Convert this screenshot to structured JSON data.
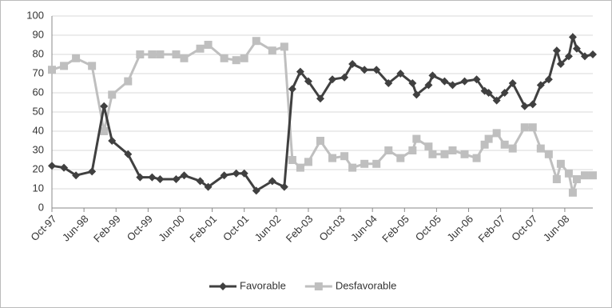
{
  "chart_data": {
    "type": "line",
    "x": [
      "1997-10",
      "1998-01",
      "1998-04",
      "1998-08",
      "1998-11",
      "1999-01",
      "1999-05",
      "1999-08",
      "1999-11",
      "2000-01",
      "2000-05",
      "2000-07",
      "2000-11",
      "2001-01",
      "2001-05",
      "2001-08",
      "2001-10",
      "2002-01",
      "2002-05",
      "2002-08",
      "2002-10",
      "2002-12",
      "2003-02",
      "2003-05",
      "2003-08",
      "2003-11",
      "2004-01",
      "2004-04",
      "2004-07",
      "2004-10",
      "2005-01",
      "2005-04",
      "2005-05",
      "2005-08",
      "2005-09",
      "2005-12",
      "2006-02",
      "2006-05",
      "2006-08",
      "2006-10",
      "2006-11",
      "2007-01",
      "2007-03",
      "2007-05",
      "2007-08",
      "2007-10",
      "2007-12",
      "2008-02",
      "2008-04",
      "2008-05",
      "2008-07",
      "2008-08",
      "2008-09",
      "2008-11",
      "2009-01"
    ],
    "series": [
      {
        "name": "Favorable",
        "color": "#404040",
        "marker": "diamond",
        "values": [
          22,
          21,
          17,
          19,
          53,
          35,
          28,
          16,
          16,
          15,
          15,
          17,
          14,
          11,
          17,
          18,
          18,
          9,
          14,
          11,
          62,
          71,
          66,
          57,
          67,
          68,
          75,
          72,
          72,
          65,
          70,
          65,
          59,
          64,
          69,
          66,
          64,
          66,
          67,
          61,
          60,
          56,
          60,
          65,
          53,
          54,
          64,
          67,
          82,
          75,
          79,
          89,
          83,
          79,
          80
        ]
      },
      {
        "name": "Desfavorable",
        "color": "#bfbfbf",
        "marker": "square",
        "values": [
          72,
          74,
          78,
          74,
          40,
          59,
          66,
          80,
          80,
          80,
          80,
          78,
          83,
          85,
          78,
          77,
          78,
          87,
          82,
          84,
          25,
          21,
          24,
          35,
          26,
          27,
          21,
          23,
          23,
          30,
          26,
          30,
          36,
          32,
          28,
          28,
          30,
          28,
          26,
          33,
          36,
          39,
          33,
          31,
          42,
          42,
          31,
          28,
          15,
          23,
          18,
          8,
          15,
          17,
          17
        ]
      }
    ],
    "xlim": [
      "1997-10",
      "2009-01"
    ],
    "xticks": [
      {
        "value": "1997-10",
        "label": "Oct-97"
      },
      {
        "value": "1998-06",
        "label": "Jun-98"
      },
      {
        "value": "1999-02",
        "label": "Feb-99"
      },
      {
        "value": "1999-10",
        "label": "Oct-99"
      },
      {
        "value": "2000-06",
        "label": "Jun-00"
      },
      {
        "value": "2001-02",
        "label": "Feb-01"
      },
      {
        "value": "2001-10",
        "label": "Oct-01"
      },
      {
        "value": "2002-06",
        "label": "Jun-02"
      },
      {
        "value": "2003-02",
        "label": "Feb-03"
      },
      {
        "value": "2003-10",
        "label": "Oct-03"
      },
      {
        "value": "2004-06",
        "label": "Jun-04"
      },
      {
        "value": "2005-02",
        "label": "Feb-05"
      },
      {
        "value": "2005-10",
        "label": "Oct-05"
      },
      {
        "value": "2006-06",
        "label": "Jun-06"
      },
      {
        "value": "2007-02",
        "label": "Feb-07"
      },
      {
        "value": "2007-10",
        "label": "Oct-07"
      },
      {
        "value": "2008-06",
        "label": "Jun-08"
      }
    ],
    "ylim": [
      0,
      100
    ],
    "yticks": [
      0,
      10,
      20,
      30,
      40,
      50,
      60,
      70,
      80,
      90,
      100
    ],
    "grid": true,
    "legend": "bottom"
  }
}
